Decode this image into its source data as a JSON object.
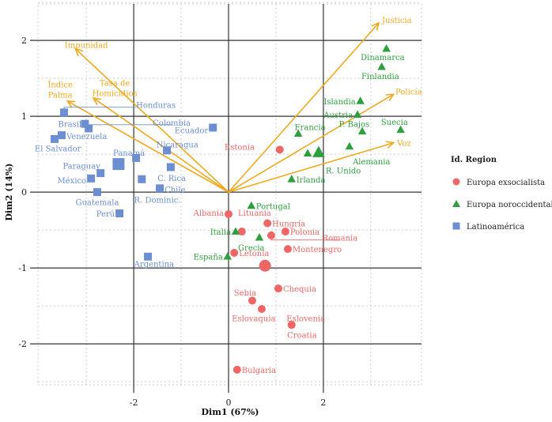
{
  "chart_data": {
    "type": "scatter",
    "title": "",
    "xlabel": "Dim1 (67%)",
    "ylabel": "Dim2 (14%)",
    "xlim": [
      -4.02,
      4.07
    ],
    "ylim": [
      -2.54,
      2.48
    ],
    "xticks": [
      -2,
      0,
      2
    ],
    "yticks": [
      -2,
      -1,
      0,
      1,
      2
    ],
    "xtick_labels": [
      "-2",
      "0",
      "2"
    ],
    "ytick_labels": [
      "-2",
      "-1",
      "0",
      "1",
      "2"
    ],
    "grid": true,
    "legend": {
      "title": "Id. Region",
      "position": "right",
      "entries": [
        {
          "name": "Europa exsocialista",
          "shape": "circle",
          "color": "#ee6666"
        },
        {
          "name": "Europa noroccidental",
          "shape": "triangle",
          "color": "#2e9e3e"
        },
        {
          "name": "Latinoamérica",
          "shape": "square",
          "color": "#6b8fd0"
        }
      ]
    },
    "arrow_color": "#f2a81d",
    "arrows": [
      {
        "name": "Impunidad",
        "x": -3.23,
        "y": 1.89,
        "lx": -3.0,
        "ly": 1.9
      },
      {
        "name": "Tasa de Homicidios",
        "x": -2.85,
        "y": 1.24,
        "lx": -2.4,
        "ly": 1.34,
        "lines": [
          "Tasa de",
          "Homicidios"
        ]
      },
      {
        "name": "Índice Palma",
        "x": -3.4,
        "y": 1.2,
        "lx": -3.55,
        "ly": 1.32,
        "lines": [
          "Índice",
          "Palma"
        ]
      },
      {
        "name": "Justicia",
        "x": 3.17,
        "y": 2.23,
        "lx": 3.55,
        "ly": 2.23
      },
      {
        "name": "Policía",
        "x": 3.48,
        "y": 1.29,
        "lx": 3.8,
        "ly": 1.29
      },
      {
        "name": "Voz",
        "x": 3.48,
        "y": 0.65,
        "lx": 3.7,
        "ly": 0.61
      }
    ],
    "series": [
      {
        "name": "Europa exsocialista",
        "shape": "circle",
        "color": "#ee6666",
        "mean": {
          "x": 0.77,
          "y": -0.97
        },
        "points": [
          {
            "label": "Estonia",
            "x": 1.08,
            "y": 0.56,
            "lx": 0.55,
            "ly": 0.6,
            "anchor": "end"
          },
          {
            "label": "Albania",
            "x": 0.0,
            "y": -0.29,
            "lx": -0.1,
            "ly": -0.27,
            "anchor": "end"
          },
          {
            "label": "Lituania",
            "x": 0.28,
            "y": -0.52,
            "lx": 0.55,
            "ly": -0.27,
            "anchor": "middle"
          },
          {
            "label": "Hungría",
            "x": 0.82,
            "y": -0.41,
            "lx": 0.92,
            "ly": -0.41,
            "anchor": "start"
          },
          {
            "label": "Polonia",
            "x": 1.2,
            "y": -0.52,
            "lx": 1.3,
            "ly": -0.52,
            "anchor": "start"
          },
          {
            "label": "Romania",
            "x": 0.9,
            "y": -0.57,
            "lx": 2.35,
            "ly": -0.6,
            "anchor": "middle"
          },
          {
            "label": "Montenegro",
            "x": 1.25,
            "y": -0.75,
            "lx": 1.35,
            "ly": -0.75,
            "anchor": "start"
          },
          {
            "label": "Letonia",
            "x": 0.12,
            "y": -0.8,
            "lx": 0.22,
            "ly": -0.8,
            "anchor": "start"
          },
          {
            "label": "Chequia",
            "x": 1.05,
            "y": -1.27,
            "lx": 1.15,
            "ly": -1.27,
            "anchor": "start"
          },
          {
            "label": "Sebia",
            "x": 0.5,
            "y": -1.43,
            "lx": 0.35,
            "ly": -1.32,
            "anchor": "middle"
          },
          {
            "label": "Eslovaquia",
            "x": 0.7,
            "y": -1.54,
            "lx": 0.53,
            "ly": -1.66,
            "anchor": "middle"
          },
          {
            "label": "Eslovenia",
            "x": 1.33,
            "y": -1.75,
            "lx": 1.63,
            "ly": -1.66,
            "anchor": "middle"
          },
          {
            "label": "Croatia",
            "x": 1.33,
            "y": -1.75,
            "lx": 1.55,
            "ly": -1.88,
            "anchor": "middle"
          },
          {
            "label": "Bulgaria",
            "x": 0.18,
            "y": -2.34,
            "lx": 0.28,
            "ly": -2.34,
            "anchor": "start"
          }
        ]
      },
      {
        "name": "Europa noroccidental",
        "shape": "triangle",
        "color": "#2e9e3e",
        "mean": {
          "x": 1.9,
          "y": 0.52
        },
        "points": [
          {
            "label": "Dinamarca",
            "x": 3.33,
            "y": 1.89,
            "lx": 3.25,
            "ly": 1.78,
            "anchor": "middle"
          },
          {
            "label": "Finlandia",
            "x": 3.23,
            "y": 1.65,
            "lx": 3.2,
            "ly": 1.53,
            "anchor": "middle"
          },
          {
            "label": "Islandia",
            "x": 2.78,
            "y": 1.2,
            "lx": 2.68,
            "ly": 1.2,
            "anchor": "end"
          },
          {
            "label": "Austria",
            "x": 2.72,
            "y": 1.02,
            "lx": 2.62,
            "ly": 1.02,
            "anchor": "end"
          },
          {
            "label": "Suecia",
            "x": 3.63,
            "y": 0.82,
            "lx": 3.5,
            "ly": 0.93,
            "anchor": "middle"
          },
          {
            "label": "P. Bajos",
            "x": 2.82,
            "y": 0.8,
            "lx": 2.65,
            "ly": 0.9,
            "anchor": "middle"
          },
          {
            "label": "Alemania",
            "x": 2.55,
            "y": 0.6,
            "lx": 2.62,
            "ly": 0.41,
            "anchor": "start"
          },
          {
            "label": "Francia",
            "x": 1.47,
            "y": 0.77,
            "lx": 1.72,
            "ly": 0.86,
            "anchor": "middle"
          },
          {
            "label": "R. Unido",
            "x": 1.67,
            "y": 0.51,
            "lx": 2.05,
            "ly": 0.29,
            "anchor": "start"
          },
          {
            "label": "Irlanda",
            "x": 1.33,
            "y": 0.17,
            "lx": 1.43,
            "ly": 0.17,
            "anchor": "start"
          },
          {
            "label": "Portugal",
            "x": 0.48,
            "y": -0.18,
            "lx": 0.58,
            "ly": -0.18,
            "anchor": "start"
          },
          {
            "label": "Italia",
            "x": 0.15,
            "y": -0.52,
            "lx": 0.05,
            "ly": -0.52,
            "anchor": "end"
          },
          {
            "label": "Grecia",
            "x": 0.65,
            "y": -0.6,
            "lx": 0.48,
            "ly": -0.73,
            "anchor": "middle"
          },
          {
            "label": "España",
            "x": -0.02,
            "y": -0.85,
            "lx": -0.12,
            "ly": -0.85,
            "anchor": "end"
          }
        ]
      },
      {
        "name": "Latinoamérica",
        "shape": "square",
        "color": "#6b8fd0",
        "mean": {
          "x": -2.32,
          "y": 0.37
        },
        "points": [
          {
            "label": "Honduras",
            "x": -3.47,
            "y": 1.05,
            "lx": -1.95,
            "ly": 1.15,
            "anchor": "start"
          },
          {
            "label": "Brasil",
            "x": -3.03,
            "y": 0.9,
            "lx": -3.1,
            "ly": 0.9,
            "anchor": "end"
          },
          {
            "label": "Colombia",
            "x": -2.95,
            "y": 0.84,
            "lx": -1.2,
            "ly": 0.92,
            "anchor": "middle"
          },
          {
            "label": "Venezuela",
            "x": -3.52,
            "y": 0.75,
            "lx": -3.42,
            "ly": 0.74,
            "anchor": "start"
          },
          {
            "label": "El Salvador",
            "x": -3.67,
            "y": 0.7,
            "lx": -3.6,
            "ly": 0.58,
            "anchor": "middle"
          },
          {
            "label": "Ecuador",
            "x": -0.33,
            "y": 0.85,
            "lx": -0.43,
            "ly": 0.82,
            "anchor": "end"
          },
          {
            "label": "Nicaragua",
            "x": -1.3,
            "y": 0.55,
            "lx": -1.08,
            "ly": 0.63,
            "anchor": "middle"
          },
          {
            "label": "Panamá",
            "x": -1.95,
            "y": 0.45,
            "lx": -2.1,
            "ly": 0.52,
            "anchor": "middle"
          },
          {
            "label": "Paraguay",
            "x": -2.7,
            "y": 0.25,
            "lx": -3.1,
            "ly": 0.35,
            "anchor": "middle"
          },
          {
            "label": "México",
            "x": -2.9,
            "y": 0.18,
            "lx": -3.0,
            "ly": 0.16,
            "anchor": "end"
          },
          {
            "label": "C. Rica",
            "x": -1.22,
            "y": 0.33,
            "lx": -1.2,
            "ly": 0.19,
            "anchor": "middle"
          },
          {
            "label": "R. Dominic.",
            "x": -1.83,
            "y": 0.17,
            "lx": -1.5,
            "ly": -0.1,
            "anchor": "middle"
          },
          {
            "label": "Chile",
            "x": -1.45,
            "y": 0.05,
            "lx": -1.35,
            "ly": 0.04,
            "anchor": "start"
          },
          {
            "label": "Guatemala",
            "x": -2.77,
            "y": 0.0,
            "lx": -2.77,
            "ly": -0.13,
            "anchor": "middle"
          },
          {
            "label": "Perú",
            "x": -2.3,
            "y": -0.28,
            "lx": -2.4,
            "ly": -0.28,
            "anchor": "end"
          },
          {
            "label": "Argentina",
            "x": -1.7,
            "y": -0.85,
            "lx": -1.57,
            "ly": -0.94,
            "anchor": "middle"
          }
        ]
      }
    ]
  }
}
